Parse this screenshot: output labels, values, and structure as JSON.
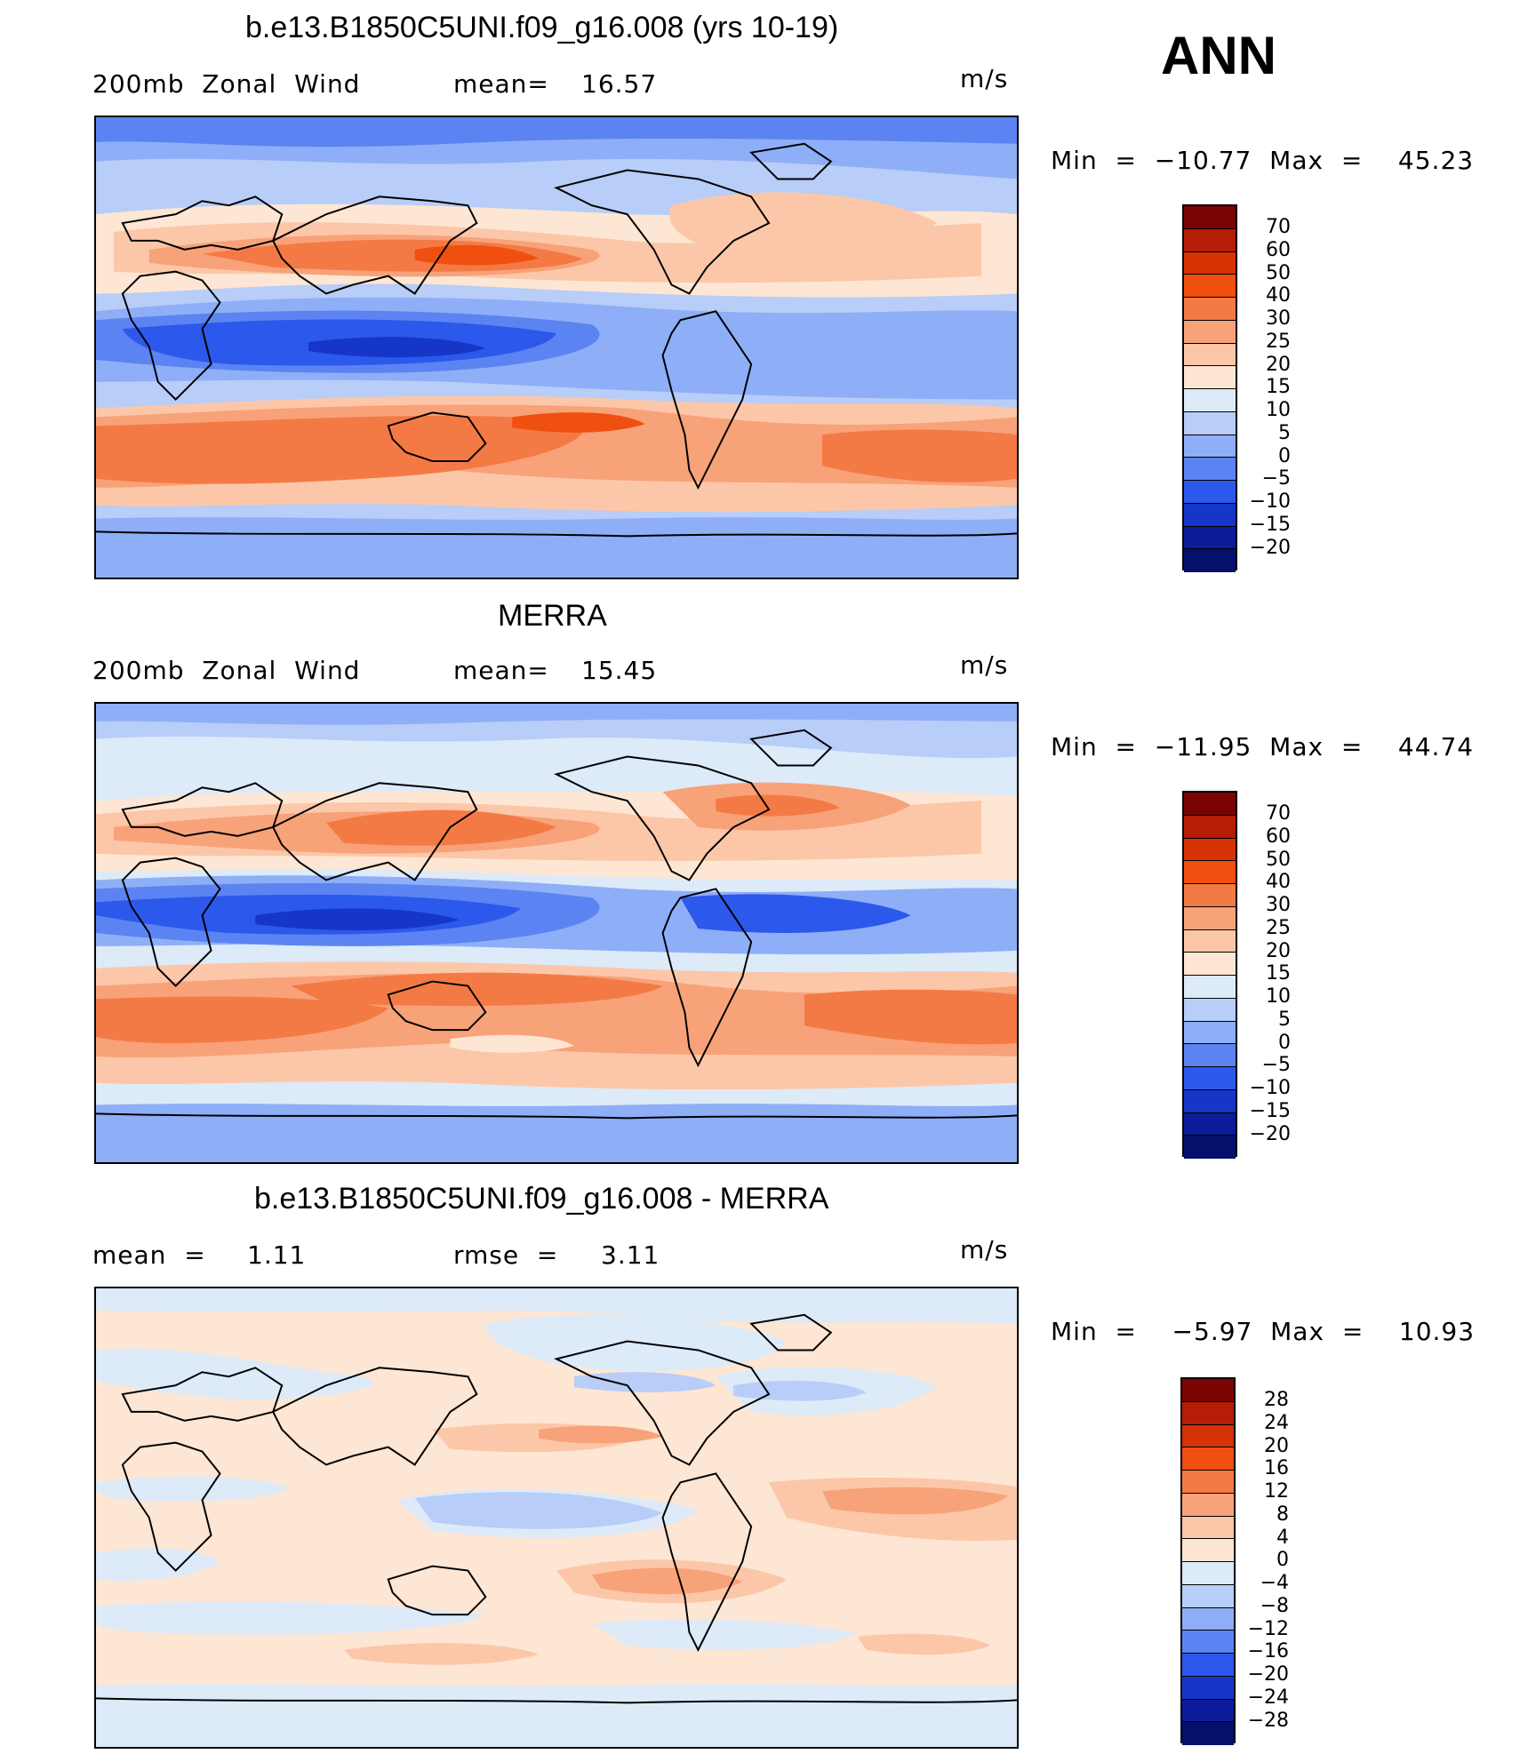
{
  "season": "ANN",
  "panels": [
    {
      "title": "b.e13.B1850C5UNI.f09_g16.008 (yrs 10-19)",
      "left_label": "200mb  Zonal  Wind",
      "stat_label": "mean=",
      "stat_value": "16.57",
      "units": "m/s",
      "minmax": "Min  =  −10.77  Max  =    45.23",
      "colorbar": {
        "labels": [
          "70",
          "60",
          "50",
          "40",
          "30",
          "25",
          "20",
          "15",
          "10",
          "5",
          "0",
          "−5",
          "−10",
          "−15",
          "−20"
        ],
        "colors": [
          "#7a0403",
          "#b51d06",
          "#d63304",
          "#f0500f",
          "#f47a45",
          "#f8a27a",
          "#fcc7a8",
          "#fde6d3",
          "#ddeaf8",
          "#b8cdf7",
          "#8eaef7",
          "#5b84f2",
          "#2c58ec",
          "#1636c8",
          "#0a1c9a",
          "#04106a"
        ]
      },
      "map_palette": {
        "strong_neg": "#2c58ec",
        "neg": "#5b84f2",
        "weak_neg": "#8eaef7",
        "vweak_neg": "#b8cdf7",
        "near_zero": "#ddeaf8",
        "weak_pos": "#fde6d3",
        "pos": "#fcc7a8",
        "mid_pos": "#f8a27a",
        "strong_pos": "#f47a45",
        "max_pos": "#f0500f"
      }
    },
    {
      "title": "MERRA",
      "left_label": "200mb  Zonal  Wind",
      "stat_label": "mean=",
      "stat_value": "15.45",
      "units": "m/s",
      "minmax": "Min  =  −11.95  Max  =    44.74",
      "colorbar": {
        "labels": [
          "70",
          "60",
          "50",
          "40",
          "30",
          "25",
          "20",
          "15",
          "10",
          "5",
          "0",
          "−5",
          "−10",
          "−15",
          "−20"
        ],
        "colors": [
          "#7a0403",
          "#b51d06",
          "#d63304",
          "#f0500f",
          "#f47a45",
          "#f8a27a",
          "#fcc7a8",
          "#fde6d3",
          "#ddeaf8",
          "#b8cdf7",
          "#8eaef7",
          "#5b84f2",
          "#2c58ec",
          "#1636c8",
          "#0a1c9a",
          "#04106a"
        ]
      }
    },
    {
      "title": "b.e13.B1850C5UNI.f09_g16.008 - MERRA",
      "left_label": "mean  =",
      "left_value": "1.11",
      "stat_label": "rmse  =",
      "stat_value": "3.11",
      "units": "m/s",
      "minmax": "Min  =    −5.97  Max  =    10.93",
      "colorbar": {
        "labels": [
          "28",
          "24",
          "20",
          "16",
          "12",
          "8",
          "4",
          "0",
          "−4",
          "−8",
          "−12",
          "−16",
          "−20",
          "−24",
          "−28"
        ],
        "colors": [
          "#7a0403",
          "#b51d06",
          "#d63304",
          "#f0500f",
          "#f47a45",
          "#f8a27a",
          "#fcc7a8",
          "#fde6d3",
          "#ddeaf8",
          "#b8cdf7",
          "#8eaef7",
          "#5b84f2",
          "#2c58ec",
          "#1636c8",
          "#0a1c9a",
          "#04106a"
        ]
      }
    }
  ]
}
